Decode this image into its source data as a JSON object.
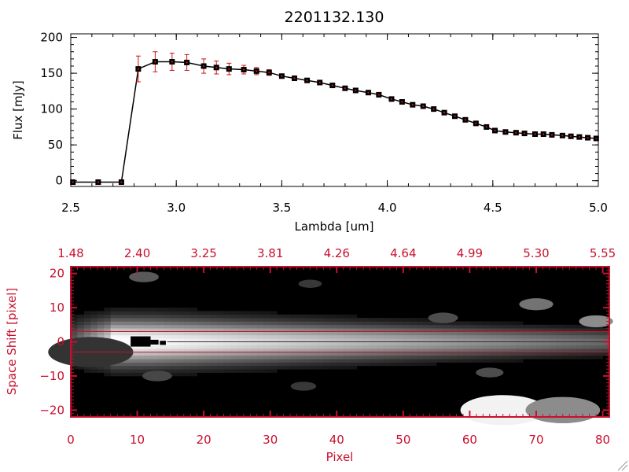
{
  "chart_data": [
    {
      "type": "line",
      "title": "2201132.130",
      "xlabel": "Lambda [um]",
      "ylabel": "Flux [mJy]",
      "xlim": [
        2.5,
        5.0
      ],
      "ylim": [
        -8,
        205
      ],
      "xticks": [
        2.5,
        3.0,
        3.5,
        4.0,
        4.5,
        5.0
      ],
      "xtick_labels": [
        "2.5",
        "3.0",
        "3.5",
        "4.0",
        "4.5",
        "5.0"
      ],
      "yticks": [
        0,
        50,
        100,
        150,
        200
      ],
      "ytick_labels": [
        "0",
        "50",
        "100",
        "150",
        "200"
      ],
      "line_color": "#000000",
      "marker_color": "#000000",
      "errorbar_color": "#d01010",
      "series": [
        {
          "x": [
            2.51,
            2.63,
            2.74,
            2.82,
            2.9,
            2.98,
            3.05,
            3.13,
            3.19,
            3.25,
            3.32,
            3.38,
            3.44,
            3.5,
            3.56,
            3.62,
            3.68,
            3.74,
            3.8,
            3.85,
            3.91,
            3.96,
            4.02,
            4.07,
            4.12,
            4.17,
            4.22,
            4.27,
            4.32,
            4.37,
            4.42,
            4.47,
            4.51,
            4.56,
            4.61,
            4.65,
            4.7,
            4.74,
            4.78,
            4.83,
            4.87,
            4.91,
            4.95,
            4.99
          ],
          "y": [
            -2,
            -2,
            -2,
            156,
            166,
            166,
            165,
            160,
            158,
            156,
            155,
            153,
            151,
            146,
            143,
            140,
            137,
            133,
            129,
            126,
            123,
            120,
            114,
            110,
            106,
            104,
            100,
            95,
            90,
            85,
            80,
            75,
            70,
            68,
            67,
            66,
            65,
            65,
            64,
            63,
            62,
            61,
            60,
            59
          ],
          "yerr": [
            0,
            0,
            0,
            18,
            14,
            12,
            11,
            10,
            9,
            8,
            6,
            5,
            4,
            3,
            3,
            3,
            3,
            3,
            3,
            3,
            3,
            3,
            3,
            3,
            3,
            3,
            3,
            3,
            3,
            3,
            3,
            3,
            3,
            3,
            3,
            3,
            3,
            3,
            3,
            3,
            3,
            3,
            3,
            3
          ]
        }
      ]
    },
    {
      "type": "heatmap",
      "xlabel": "Pixel",
      "ylabel": "Space Shift [pixel]",
      "xlim": [
        0,
        81
      ],
      "ylim": [
        -22,
        22
      ],
      "xticks": [
        0,
        10,
        20,
        30,
        40,
        50,
        60,
        70,
        80
      ],
      "xtick_labels": [
        "0",
        "10",
        "20",
        "30",
        "40",
        "50",
        "60",
        "70",
        "80"
      ],
      "yticks": [
        -20,
        -10,
        0,
        10,
        20
      ],
      "ytick_labels": [
        "−20",
        "−10",
        "0",
        "10",
        "20"
      ],
      "top_axis_tick_labels": [
        "1.48",
        "2.40",
        "3.25",
        "3.81",
        "4.26",
        "4.64",
        "4.99",
        "5.30",
        "5.55"
      ],
      "axis_color": "#c8102e",
      "guide_lines_y": [
        3,
        -3
      ],
      "colormap": "grayscale"
    }
  ]
}
